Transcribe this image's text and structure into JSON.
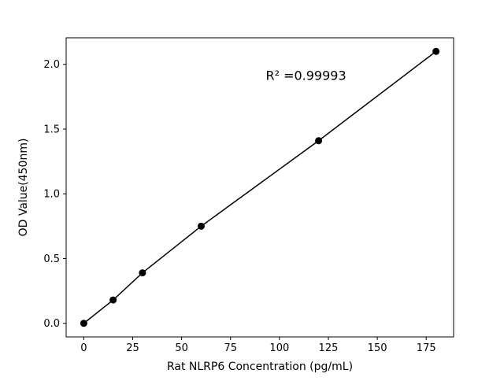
{
  "chart_data": {
    "type": "scatter",
    "title": "",
    "xlabel": "Rat NLRP6 Concentration (pg/mL)",
    "ylabel": "OD Value(450nm)",
    "x": [
      0,
      15,
      30,
      60,
      120,
      180
    ],
    "y": [
      0.0,
      0.18,
      0.39,
      0.75,
      1.41,
      2.1
    ],
    "xlim": [
      -9,
      189
    ],
    "ylim": [
      -0.105,
      2.205
    ],
    "xticks": [
      0,
      25,
      50,
      75,
      100,
      125,
      150,
      175
    ],
    "yticks": [
      0.0,
      0.5,
      1.0,
      1.5,
      2.0
    ],
    "ytick_decimals": 1,
    "annotation": {
      "text": "R² =0.99993",
      "x": 93,
      "y": 1.88
    },
    "grid": false,
    "legend_position": "none",
    "line_color": "#000000",
    "marker_color": "#000000",
    "background_color": "#ffffff",
    "marker_style": "circle",
    "line_width": 1.5,
    "marker_radius": 4.5
  }
}
